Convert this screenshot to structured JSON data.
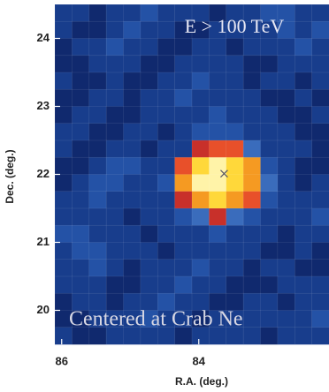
{
  "chart_data": {
    "type": "heatmap",
    "title": "E > 100 TeV",
    "annotation": "Centered at Crab Ne",
    "x_label": "R.A. (deg.)",
    "y_label": "Dec. (deg.)",
    "xlim": [
      86.1,
      82.1
    ],
    "ylim": [
      19.5,
      24.5
    ],
    "xticks": [
      86,
      84
    ],
    "yticks": [
      20,
      21,
      22,
      23,
      24
    ],
    "source": {
      "x": 83.63,
      "y": 22.01
    },
    "colorscale": [
      "#0a1a52",
      "#10296e",
      "#183d8c",
      "#2452a6",
      "#3a6cbc",
      "#c8302a",
      "#e8502a",
      "#f59a22",
      "#ffd83a",
      "#fff3a8"
    ],
    "z": [
      [
        2,
        2,
        1,
        2,
        2,
        3,
        2,
        2,
        2,
        1,
        2,
        2,
        3,
        3,
        2,
        2
      ],
      [
        2,
        1,
        1,
        2,
        3,
        2,
        2,
        1,
        1,
        2,
        2,
        2,
        2,
        3,
        2,
        3
      ],
      [
        1,
        2,
        2,
        3,
        2,
        2,
        1,
        1,
        2,
        2,
        1,
        2,
        2,
        2,
        3,
        2
      ],
      [
        1,
        1,
        2,
        2,
        2,
        1,
        1,
        2,
        2,
        2,
        2,
        1,
        1,
        2,
        2,
        2
      ],
      [
        2,
        1,
        1,
        2,
        1,
        1,
        2,
        2,
        3,
        2,
        2,
        1,
        2,
        2,
        1,
        2
      ],
      [
        1,
        1,
        2,
        2,
        1,
        2,
        2,
        3,
        2,
        2,
        2,
        2,
        1,
        1,
        2,
        1
      ],
      [
        1,
        2,
        2,
        1,
        1,
        2,
        2,
        2,
        2,
        3,
        2,
        2,
        2,
        1,
        1,
        2
      ],
      [
        2,
        2,
        1,
        1,
        2,
        2,
        1,
        2,
        3,
        3,
        3,
        2,
        2,
        2,
        1,
        1
      ],
      [
        2,
        1,
        1,
        2,
        2,
        1,
        2,
        2,
        5,
        6,
        6,
        4,
        2,
        2,
        2,
        1
      ],
      [
        1,
        1,
        2,
        3,
        3,
        2,
        2,
        6,
        8,
        9,
        8,
        7,
        3,
        2,
        1,
        1
      ],
      [
        1,
        2,
        3,
        3,
        2,
        2,
        3,
        7,
        9,
        9,
        8,
        7,
        4,
        2,
        1,
        2
      ],
      [
        2,
        2,
        3,
        2,
        2,
        2,
        2,
        5,
        7,
        8,
        7,
        6,
        3,
        2,
        2,
        2
      ],
      [
        2,
        2,
        2,
        2,
        1,
        2,
        2,
        3,
        4,
        5,
        4,
        3,
        2,
        2,
        2,
        3
      ],
      [
        3,
        3,
        2,
        2,
        2,
        1,
        2,
        2,
        2,
        3,
        2,
        2,
        2,
        1,
        2,
        2
      ],
      [
        2,
        3,
        3,
        2,
        2,
        2,
        1,
        2,
        2,
        2,
        2,
        2,
        1,
        1,
        2,
        1
      ],
      [
        2,
        2,
        3,
        2,
        1,
        2,
        2,
        2,
        3,
        2,
        2,
        1,
        2,
        2,
        1,
        1
      ],
      [
        2,
        2,
        2,
        1,
        1,
        2,
        2,
        3,
        2,
        2,
        1,
        1,
        1,
        2,
        2,
        2
      ],
      [
        1,
        2,
        2,
        1,
        2,
        2,
        3,
        2,
        2,
        1,
        1,
        2,
        2,
        1,
        2,
        2
      ],
      [
        1,
        1,
        2,
        2,
        2,
        3,
        2,
        2,
        1,
        2,
        2,
        2,
        2,
        2,
        2,
        3
      ],
      [
        2,
        1,
        1,
        2,
        2,
        2,
        2,
        1,
        2,
        2,
        2,
        2,
        1,
        2,
        2,
        2
      ]
    ]
  }
}
